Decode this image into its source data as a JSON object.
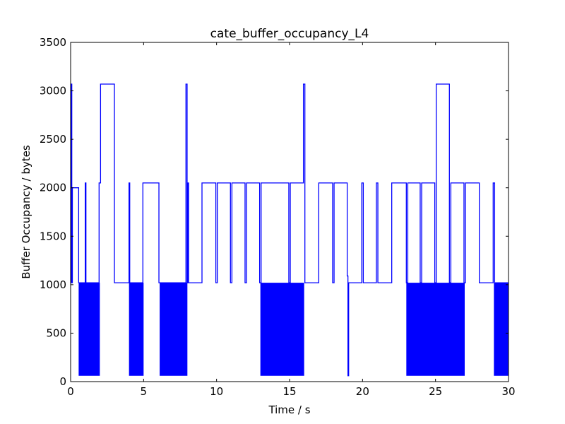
{
  "chart_data": {
    "type": "line",
    "title": "cate_buffer_occupancy_L4",
    "xlabel": "Time / s",
    "ylabel": "Buffer Occupancy / bytes",
    "xlim": [
      0,
      30
    ],
    "ylim": [
      0,
      3500
    ],
    "x_ticks": [
      0,
      5,
      10,
      15,
      20,
      25,
      30
    ],
    "y_ticks": [
      0,
      500,
      1000,
      1500,
      2000,
      2500,
      3000,
      3500
    ],
    "grid": false,
    "legend": "none",
    "series_color": "#0000ff",
    "series": [
      {
        "x": [
          0.0,
          0.05,
          0.05,
          0.08,
          0.08,
          0.12,
          0.12,
          0.55,
          0.55,
          1.0,
          1.0,
          1.05,
          1.05,
          1.95,
          1.95,
          2.05,
          2.05,
          3.0,
          3.0,
          4.0,
          4.0,
          4.05,
          4.05,
          4.95,
          4.95,
          5.05,
          5.05,
          6.05,
          6.05,
          6.1,
          6.1,
          7.9,
          7.9,
          7.98,
          7.98,
          8.02,
          8.02,
          8.08,
          8.08,
          9.0,
          9.0,
          9.95,
          9.95,
          10.05,
          10.05,
          10.95,
          10.95,
          11.05,
          11.05,
          11.95,
          11.95,
          12.05,
          12.05,
          12.95,
          12.95,
          13.05,
          13.05,
          14.95,
          14.95,
          15.05,
          15.05,
          15.95,
          15.95,
          16.05,
          16.05,
          17.0,
          17.0,
          17.95,
          17.95,
          18.05,
          18.05,
          18.95,
          18.95,
          19.0,
          19.0,
          19.05,
          19.05,
          19.95,
          19.95,
          20.05,
          20.05,
          20.95,
          20.95,
          21.05,
          21.05,
          22.0,
          22.0,
          23.0,
          23.0,
          23.1,
          23.1,
          23.95,
          23.95,
          24.05,
          24.05,
          24.95,
          24.95,
          25.05,
          25.05,
          25.95,
          25.95,
          26.05,
          26.05,
          26.95,
          26.95,
          27.05,
          27.05,
          28.0,
          28.0,
          28.95,
          28.95,
          29.05,
          29.05,
          30.0
        ],
        "y": [
          1020,
          1020,
          3070,
          3070,
          1020,
          1020,
          2000,
          2000,
          1020,
          1020,
          2050,
          2050,
          1020,
          1020,
          2050,
          2050,
          3070,
          3070,
          1020,
          1020,
          2050,
          2050,
          1020,
          1020,
          2050,
          2050,
          2050,
          2050,
          1020,
          1020,
          1020,
          1020,
          3070,
          3070,
          1020,
          1020,
          2050,
          2050,
          1020,
          1020,
          2050,
          2050,
          1020,
          1020,
          2050,
          2050,
          1020,
          1020,
          2050,
          2050,
          1020,
          1020,
          2050,
          2050,
          1020,
          1020,
          2050,
          2050,
          1020,
          1020,
          2050,
          2050,
          3070,
          3070,
          1020,
          1020,
          2050,
          2050,
          1020,
          1020,
          2050,
          2050,
          1090,
          1090,
          60,
          60,
          1020,
          1020,
          2050,
          2050,
          1020,
          1020,
          2050,
          2050,
          1020,
          1020,
          2050,
          2050,
          1020,
          1020,
          2050,
          2050,
          1020,
          1020,
          2050,
          2050,
          1020,
          1020,
          3070,
          3070,
          1020,
          1020,
          2050,
          2050,
          1020,
          1020,
          2050,
          2050,
          1020,
          1020,
          2050,
          2050,
          1020,
          1020
        ]
      }
    ],
    "dense_oscillation_regions": [
      {
        "x_start": 0.55,
        "x_end": 2.0,
        "y_low": 60,
        "y_high": 1020
      },
      {
        "x_start": 4.0,
        "x_end": 5.0,
        "y_low": 60,
        "y_high": 1020
      },
      {
        "x_start": 6.1,
        "x_end": 8.0,
        "y_low": 60,
        "y_high": 1020
      },
      {
        "x_start": 13.0,
        "x_end": 16.0,
        "y_low": 60,
        "y_high": 1020
      },
      {
        "x_start": 23.0,
        "x_end": 27.0,
        "y_low": 60,
        "y_high": 1020
      },
      {
        "x_start": 29.0,
        "x_end": 30.0,
        "y_low": 60,
        "y_high": 1020
      }
    ]
  }
}
